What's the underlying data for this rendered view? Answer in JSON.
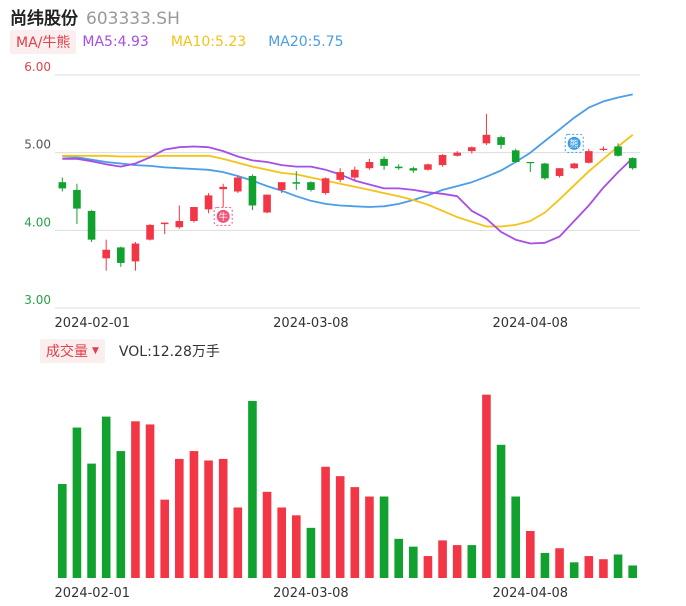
{
  "header": {
    "name": "尚纬股份",
    "code": "603333.SH"
  },
  "legend": {
    "toggle_label": "MA/牛熊",
    "ma5_label": "MA5:4.93",
    "ma10_label": "MA10:5.23",
    "ma20_label": "MA20:5.75"
  },
  "volume_header": {
    "toggle_label": "成交量",
    "vol_label": "VOL:12.28万手"
  },
  "colors": {
    "up": "#f23645",
    "down": "#11a12f",
    "ma5": "#a64ee6",
    "ma10": "#f5c218",
    "ma20": "#4a9de8",
    "grid": "#dddddd"
  },
  "markers": {
    "bull": "牛",
    "bear": "熊"
  },
  "chart_data": [
    {
      "type": "candlestick",
      "title": "尚纬股份 603333.SH",
      "ylim": [
        3.0,
        6.0
      ],
      "y_ticks": [
        "6.00",
        "5.00",
        "4.00",
        "3.00"
      ],
      "x_ticks": [
        "2024-02-01",
        "2024-03-08",
        "2024-04-08"
      ],
      "candles": [
        {
          "o": 4.62,
          "h": 4.68,
          "l": 4.5,
          "c": 4.54
        },
        {
          "o": 4.52,
          "h": 4.6,
          "l": 4.08,
          "c": 4.28
        },
        {
          "o": 4.25,
          "h": 4.26,
          "l": 3.85,
          "c": 3.88
        },
        {
          "o": 3.64,
          "h": 3.88,
          "l": 3.48,
          "c": 3.75
        },
        {
          "o": 3.78,
          "h": 3.79,
          "l": 3.53,
          "c": 3.58
        },
        {
          "o": 3.6,
          "h": 3.85,
          "l": 3.48,
          "c": 3.83
        },
        {
          "o": 3.88,
          "h": 4.08,
          "l": 3.87,
          "c": 4.07
        },
        {
          "o": 4.08,
          "h": 4.1,
          "l": 3.95,
          "c": 4.1
        },
        {
          "o": 4.04,
          "h": 4.32,
          "l": 4.02,
          "c": 4.12
        },
        {
          "o": 4.12,
          "h": 4.3,
          "l": 4.1,
          "c": 4.3
        },
        {
          "o": 4.27,
          "h": 4.48,
          "l": 4.22,
          "c": 4.45
        },
        {
          "o": 4.53,
          "h": 4.6,
          "l": 4.25,
          "c": 4.56
        },
        {
          "o": 4.5,
          "h": 4.7,
          "l": 4.48,
          "c": 4.68
        },
        {
          "o": 4.7,
          "h": 4.72,
          "l": 4.26,
          "c": 4.32
        },
        {
          "o": 4.23,
          "h": 4.46,
          "l": 4.22,
          "c": 4.46
        },
        {
          "o": 4.52,
          "h": 4.62,
          "l": 4.48,
          "c": 4.62
        },
        {
          "o": 4.62,
          "h": 4.76,
          "l": 4.52,
          "c": 4.6
        },
        {
          "o": 4.62,
          "h": 4.63,
          "l": 4.5,
          "c": 4.52
        },
        {
          "o": 4.48,
          "h": 4.68,
          "l": 4.46,
          "c": 4.67
        },
        {
          "o": 4.65,
          "h": 4.8,
          "l": 4.62,
          "c": 4.75
        },
        {
          "o": 4.68,
          "h": 4.82,
          "l": 4.65,
          "c": 4.78
        },
        {
          "o": 4.8,
          "h": 4.92,
          "l": 4.78,
          "c": 4.88
        },
        {
          "o": 4.92,
          "h": 4.95,
          "l": 4.78,
          "c": 4.83
        },
        {
          "o": 4.82,
          "h": 4.85,
          "l": 4.78,
          "c": 4.8
        },
        {
          "o": 4.8,
          "h": 4.82,
          "l": 4.74,
          "c": 4.77
        },
        {
          "o": 4.78,
          "h": 4.86,
          "l": 4.77,
          "c": 4.85
        },
        {
          "o": 4.84,
          "h": 4.98,
          "l": 4.82,
          "c": 4.97
        },
        {
          "o": 4.96,
          "h": 5.02,
          "l": 4.95,
          "c": 5.0
        },
        {
          "o": 5.02,
          "h": 5.08,
          "l": 4.99,
          "c": 5.07
        },
        {
          "o": 5.12,
          "h": 5.5,
          "l": 5.1,
          "c": 5.23
        },
        {
          "o": 5.2,
          "h": 5.22,
          "l": 5.05,
          "c": 5.1
        },
        {
          "o": 5.03,
          "h": 5.05,
          "l": 4.87,
          "c": 4.88
        },
        {
          "o": 4.88,
          "h": 4.88,
          "l": 4.75,
          "c": 4.87
        },
        {
          "o": 4.86,
          "h": 4.87,
          "l": 4.65,
          "c": 4.67
        },
        {
          "o": 4.7,
          "h": 4.8,
          "l": 4.68,
          "c": 4.8
        },
        {
          "o": 4.8,
          "h": 4.87,
          "l": 4.79,
          "c": 4.86
        },
        {
          "o": 4.87,
          "h": 5.05,
          "l": 4.86,
          "c": 5.02
        },
        {
          "o": 5.05,
          "h": 5.08,
          "l": 5.02,
          "c": 5.05
        },
        {
          "o": 5.08,
          "h": 5.12,
          "l": 4.95,
          "c": 4.96
        },
        {
          "o": 4.93,
          "h": 4.94,
          "l": 4.78,
          "c": 4.8
        }
      ],
      "ma5": [
        4.92,
        4.92,
        4.89,
        4.85,
        4.82,
        4.86,
        4.94,
        5.04,
        5.07,
        5.08,
        5.07,
        5.02,
        4.95,
        4.9,
        4.88,
        4.84,
        4.82,
        4.82,
        4.78,
        4.72,
        4.64,
        4.59,
        4.54,
        4.54,
        4.52,
        4.49,
        4.47,
        4.44,
        4.25,
        4.15,
        3.98,
        3.88,
        3.83,
        3.84,
        3.92,
        4.12,
        4.32,
        4.55,
        4.75,
        4.93
      ],
      "ma10": [
        4.96,
        4.96,
        4.96,
        4.96,
        4.95,
        4.95,
        4.95,
        4.96,
        4.96,
        4.96,
        4.96,
        4.92,
        4.87,
        4.82,
        4.78,
        4.74,
        4.72,
        4.68,
        4.64,
        4.6,
        4.56,
        4.52,
        4.48,
        4.44,
        4.39,
        4.33,
        4.25,
        4.17,
        4.11,
        4.05,
        4.05,
        4.07,
        4.12,
        4.23,
        4.4,
        4.58,
        4.76,
        4.92,
        5.08,
        5.23
      ],
      "ma20": [
        4.95,
        4.94,
        4.91,
        4.88,
        4.86,
        4.84,
        4.83,
        4.81,
        4.8,
        4.79,
        4.78,
        4.75,
        4.7,
        4.64,
        4.57,
        4.51,
        4.44,
        4.38,
        4.34,
        4.32,
        4.31,
        4.3,
        4.31,
        4.34,
        4.39,
        4.45,
        4.52,
        4.57,
        4.62,
        4.69,
        4.77,
        4.88,
        5.0,
        5.15,
        5.3,
        5.45,
        5.58,
        5.66,
        5.71,
        5.75
      ],
      "bull_marker_at": 11,
      "bear_marker_at": 35
    },
    {
      "type": "bar",
      "title": "成交量",
      "values": [
        60,
        96,
        73,
        103,
        81,
        100,
        98,
        50,
        76,
        81,
        75,
        76,
        45,
        113,
        55,
        45,
        40,
        32,
        71,
        65,
        58,
        52,
        52,
        25,
        20,
        14,
        24,
        21,
        21,
        117,
        85,
        52,
        30,
        16,
        19,
        10,
        14,
        12,
        15,
        8
      ],
      "up_flags": [
        0,
        0,
        0,
        0,
        0,
        1,
        1,
        1,
        1,
        1,
        1,
        1,
        1,
        0,
        1,
        1,
        1,
        0,
        1,
        1,
        1,
        1,
        0,
        0,
        0,
        1,
        1,
        1,
        0,
        1,
        0,
        0,
        1,
        0,
        1,
        0,
        1,
        1,
        0,
        0
      ]
    }
  ]
}
